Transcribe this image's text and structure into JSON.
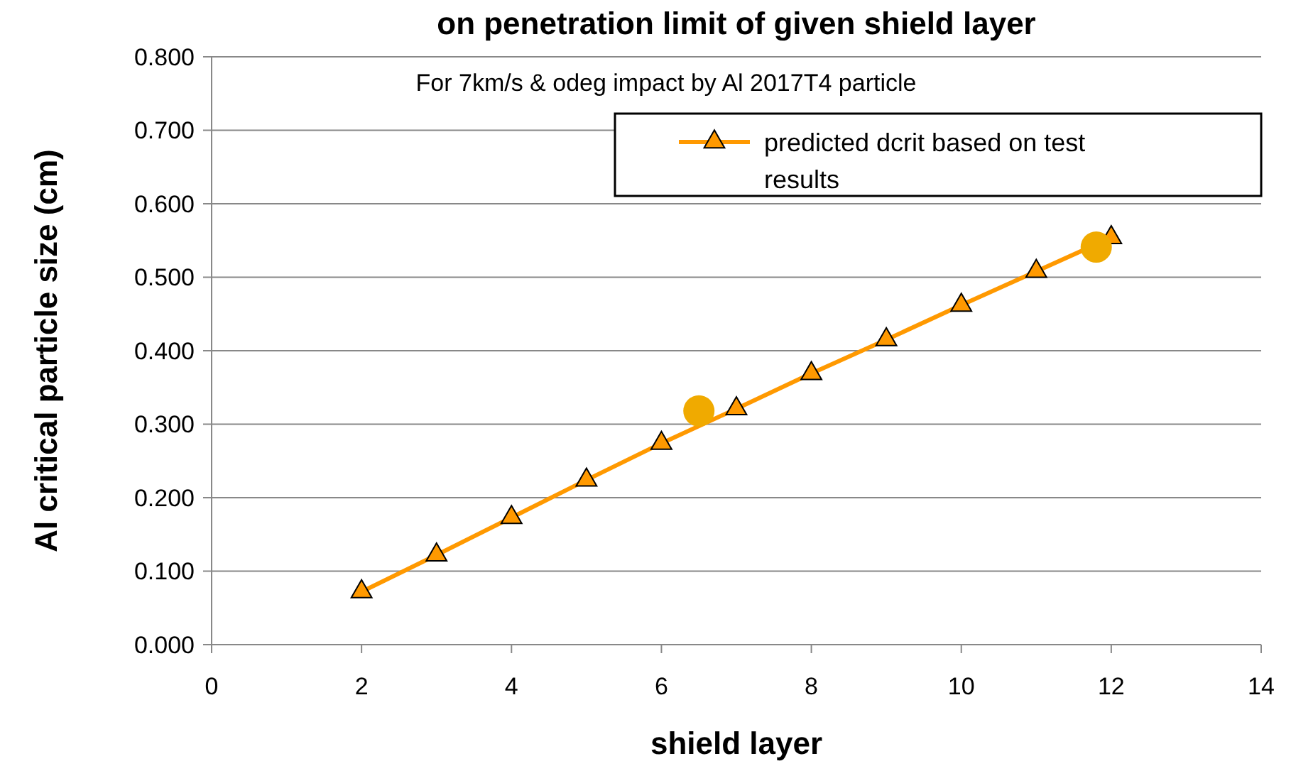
{
  "chart_data": {
    "type": "line",
    "title": "on penetration limit of given shield layer",
    "subtitle": "For 7km/s & odeg impact by Al 2017T4 particle",
    "xlabel": "shield layer",
    "ylabel": "Al critical particle size (cm)",
    "xlim": [
      0,
      14
    ],
    "xticks": [
      0,
      2,
      4,
      6,
      8,
      10,
      12,
      14
    ],
    "ylim": [
      0,
      0.8
    ],
    "yticks": [
      {
        "value": 0,
        "label": "0.000"
      },
      {
        "value": 0.1,
        "label": "0.100"
      },
      {
        "value": 0.2,
        "label": "0.200"
      },
      {
        "value": 0.3,
        "label": "0.300"
      },
      {
        "value": 0.4,
        "label": "0.400"
      },
      {
        "value": 0.5,
        "label": "0.500"
      },
      {
        "value": 0.6,
        "label": "0.600"
      },
      {
        "value": 0.7,
        "label": "0.700"
      },
      {
        "value": 0.8,
        "label": "0.800"
      }
    ],
    "grid": "y",
    "legend": "top right",
    "marker": "triangle",
    "line_style": "solid",
    "series": [
      {
        "name": "predicted dcrit based on test results",
        "type": "line",
        "color": "#ff9900",
        "x": [
          2,
          3,
          4,
          5,
          6,
          7,
          8,
          9,
          10,
          11,
          12
        ],
        "values": [
          0.072,
          0.122,
          0.173,
          0.224,
          0.274,
          0.321,
          0.369,
          0.415,
          0.462,
          0.508,
          0.554
        ]
      },
      {
        "type": "scatter",
        "marker": "circle",
        "color": "#f0aa00",
        "x": [
          6.5,
          11.8
        ],
        "values": [
          0.318,
          0.541
        ]
      }
    ]
  }
}
